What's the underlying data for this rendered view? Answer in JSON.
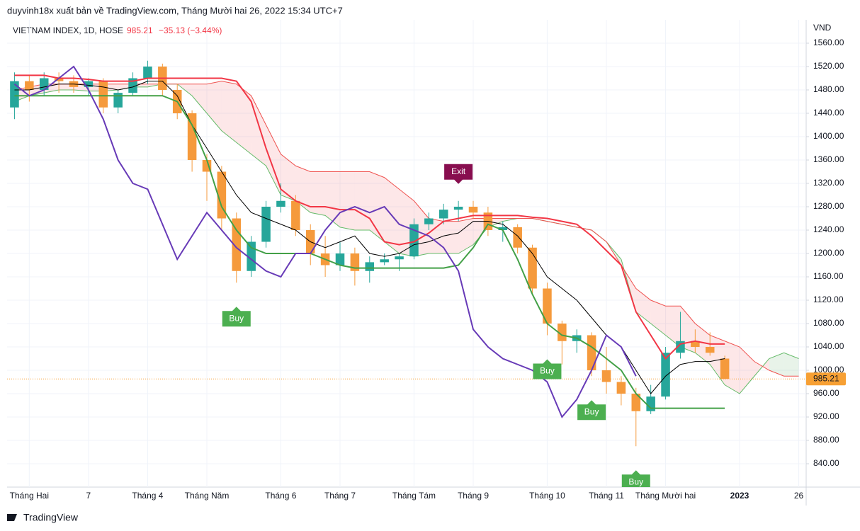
{
  "chart_data": {
    "type": "candlestick",
    "header": "duyvinh18x xuất bản về TradingView.com, Tháng Mười hai 26, 2022 15:34 UTC+7",
    "symbol": "VIETNAM INDEX, 1D, HOSE",
    "last_price": 985.21,
    "change": "−35.13 (−3.44%)",
    "currency": "VND",
    "brand": "TradingView",
    "up_color": "#26a69a",
    "down_color": "#f59a3c",
    "grid": true,
    "ylim": [
      800,
      1600
    ],
    "yticks": [
      {
        "value": 840,
        "label": "840.00"
      },
      {
        "value": 880,
        "label": "880.00"
      },
      {
        "value": 920,
        "label": "920.00"
      },
      {
        "value": 960,
        "label": "960.00"
      },
      {
        "value": 1000,
        "label": "1000.00"
      },
      {
        "value": 1040,
        "label": "1040.00"
      },
      {
        "value": 1080,
        "label": "1080.00"
      },
      {
        "value": 1120,
        "label": "1120.00"
      },
      {
        "value": 1160,
        "label": "1160.00"
      },
      {
        "value": 1200,
        "label": "1200.00"
      },
      {
        "value": 1240,
        "label": "1240.00"
      },
      {
        "value": 1280,
        "label": "1280.00"
      },
      {
        "value": 1320,
        "label": "1320.00"
      },
      {
        "value": 1360,
        "label": "1360.00"
      },
      {
        "value": 1400,
        "label": "1400.00"
      },
      {
        "value": 1440,
        "label": "1440.00"
      },
      {
        "value": 1480,
        "label": "1480.00"
      },
      {
        "value": 1520,
        "label": "1520.00"
      },
      {
        "value": 1560,
        "label": "1560.00"
      }
    ],
    "categories": [
      null,
      "Tháng Hai",
      null,
      null,
      null,
      "7",
      null,
      null,
      null,
      "Tháng 4",
      null,
      null,
      null,
      "Tháng Năm",
      null,
      null,
      null,
      null,
      "Tháng 6",
      null,
      null,
      null,
      "Tháng 7",
      null,
      null,
      null,
      null,
      "Tháng Tám",
      null,
      null,
      null,
      "Tháng 9",
      null,
      null,
      null,
      null,
      "Tháng 10",
      null,
      null,
      null,
      "Tháng 11",
      null,
      null,
      null,
      "Tháng Mười hai",
      null,
      null,
      null,
      null,
      "2023",
      null,
      null,
      null,
      "26"
    ],
    "open": [
      1450,
      1495,
      1480,
      1500,
      1495,
      1485,
      1495,
      1450,
      1475,
      1500,
      1520,
      1480,
      1440,
      1360,
      1340,
      1260,
      1170,
      1220,
      1280,
      1290,
      1240,
      1200,
      1180,
      1200,
      1170,
      1185,
      1190,
      1195,
      1250,
      1260,
      1275,
      1280,
      1270,
      1240,
      1245,
      1210,
      1140,
      1080,
      1050,
      1060,
      1000,
      980,
      960,
      930,
      955,
      1030,
      1050,
      1040,
      1020,
      null,
      null,
      null,
      null,
      null
    ],
    "high": [
      1510,
      1505,
      1510,
      1510,
      1505,
      1500,
      1500,
      1480,
      1510,
      1530,
      1525,
      1490,
      1445,
      1370,
      1350,
      1270,
      1230,
      1290,
      1320,
      1300,
      1250,
      1230,
      1220,
      1210,
      1195,
      1200,
      1200,
      1260,
      1270,
      1285,
      1290,
      1290,
      1280,
      1255,
      1250,
      1215,
      1150,
      1085,
      1070,
      1065,
      1040,
      990,
      970,
      975,
      1040,
      1100,
      1070,
      1065,
      1025,
      null,
      null,
      null,
      null,
      null
    ],
    "low": [
      1430,
      1460,
      1470,
      1475,
      1475,
      1470,
      1440,
      1440,
      1470,
      1490,
      1470,
      1430,
      1340,
      1290,
      1240,
      1150,
      1160,
      1210,
      1270,
      1230,
      1180,
      1160,
      1170,
      1145,
      1150,
      1180,
      1170,
      1190,
      1240,
      1250,
      1255,
      1260,
      1230,
      1220,
      1200,
      1130,
      1060,
      1010,
      1030,
      990,
      960,
      940,
      870,
      925,
      950,
      1020,
      1030,
      1025,
      985,
      null,
      null,
      null,
      null,
      null
    ],
    "close": [
      1495,
      1480,
      1500,
      1495,
      1485,
      1495,
      1450,
      1475,
      1500,
      1520,
      1480,
      1440,
      1360,
      1340,
      1260,
      1170,
      1220,
      1280,
      1290,
      1240,
      1200,
      1180,
      1200,
      1170,
      1185,
      1190,
      1195,
      1250,
      1260,
      1275,
      1280,
      1270,
      1240,
      1245,
      1210,
      1140,
      1080,
      1050,
      1060,
      1000,
      980,
      960,
      930,
      955,
      1030,
      1050,
      1040,
      1030,
      985.21,
      null,
      null,
      null,
      null,
      null
    ],
    "series": [
      {
        "color": "#000000",
        "width": 1,
        "values": [
          1480,
          1480,
          1485,
          1490,
          1490,
          1488,
          1485,
          1480,
          1485,
          1495,
          1495,
          1470,
          1420,
          1380,
          1340,
          1300,
          1270,
          1260,
          1250,
          1240,
          1220,
          1210,
          1220,
          1230,
          1200,
          1195,
          1200,
          1215,
          1220,
          1230,
          1235,
          1255,
          1255,
          1250,
          1230,
          1200,
          1160,
          1140,
          1120,
          1090,
          1060,
          1040,
          1000,
          960,
          990,
          1010,
          1015,
          1015,
          1020,
          null,
          null,
          null,
          null,
          null
        ]
      },
      {
        "color": "#f23645",
        "width": 2,
        "values": [
          1505,
          1505,
          1505,
          1500,
          1500,
          1498,
          1495,
          1495,
          1495,
          1500,
          1500,
          1500,
          1500,
          1500,
          1500,
          1495,
          1460,
          1380,
          1310,
          1290,
          1280,
          1280,
          1275,
          1275,
          1260,
          1220,
          1215,
          1220,
          1235,
          1255,
          1260,
          1265,
          1265,
          1265,
          1265,
          1262,
          1260,
          1255,
          1250,
          1230,
          1205,
          1180,
          1100,
          1060,
          1020,
          1045,
          1050,
          1045,
          1045,
          null,
          null,
          null,
          null,
          null
        ]
      },
      {
        "color": "#43a047",
        "width": 2,
        "values": [
          1470,
          1470,
          1470,
          1470,
          1470,
          1470,
          1470,
          1470,
          1470,
          1470,
          1470,
          1460,
          1420,
          1360,
          1280,
          1240,
          1210,
          1200,
          1200,
          1200,
          1200,
          1190,
          1180,
          1175,
          1175,
          1175,
          1175,
          1175,
          1175,
          1175,
          1180,
          1210,
          1250,
          1240,
          1190,
          1130,
          1080,
          1060,
          1055,
          1040,
          1020,
          1000,
          960,
          935,
          935,
          935,
          935,
          935,
          935,
          null,
          null,
          null,
          null,
          null
        ]
      },
      {
        "color": "#673ab7",
        "width": 2,
        "values": [
          1490,
          1470,
          1480,
          1500,
          1520,
          1480,
          1430,
          1360,
          1320,
          1310,
          1250,
          1190,
          1230,
          1270,
          1240,
          1210,
          1190,
          1170,
          1160,
          1200,
          1200,
          1240,
          1270,
          1280,
          1270,
          1280,
          1250,
          1240,
          1230,
          1210,
          1170,
          1070,
          1040,
          1020,
          1010,
          1000,
          980,
          920,
          950,
          1000,
          1060,
          1040,
          990,
          null,
          null,
          null,
          null,
          null,
          null,
          null,
          null,
          null,
          null,
          null
        ]
      }
    ],
    "cloud": {
      "up_color": "rgba(67,160,71,0.12)",
      "down_color": "rgba(242,54,69,0.12)",
      "lead_a": {
        "color": "#66bb6a",
        "values": [
          1460,
          1470,
          1475,
          1480,
          1480,
          1478,
          1478,
          1480,
          1485,
          1485,
          1490,
          1490,
          1470,
          1440,
          1410,
          1390,
          1370,
          1350,
          1300,
          1290,
          1270,
          1265,
          1245,
          1240,
          1240,
          1220,
          1200,
          1195,
          1200,
          1200,
          1200,
          1215,
          1245,
          1255,
          1260,
          1260,
          1255,
          1250,
          1245,
          1240,
          1220,
          1190,
          1100,
          1080,
          1060,
          1040,
          1030,
          1010,
          975,
          960,
          990,
          1020,
          1030,
          1020
        ]
      },
      "lead_b": {
        "color": "#ef5350",
        "values": [
          1480,
          1485,
          1490,
          1490,
          1490,
          1490,
          1490,
          1490,
          1490,
          1490,
          1490,
          1490,
          1490,
          1490,
          1495,
          1490,
          1470,
          1420,
          1370,
          1350,
          1340,
          1340,
          1340,
          1340,
          1340,
          1330,
          1310,
          1290,
          1260,
          1255,
          1255,
          1260,
          1260,
          1260,
          1260,
          1260,
          1255,
          1250,
          1245,
          1240,
          1220,
          1180,
          1140,
          1120,
          1110,
          1110,
          1080,
          1060,
          1050,
          1040,
          1015,
          1000,
          990,
          990
        ]
      }
    },
    "signals": [
      null,
      null,
      null,
      null,
      null,
      null,
      null,
      null,
      null,
      null,
      null,
      null,
      null,
      null,
      null,
      "Buy",
      null,
      null,
      null,
      null,
      null,
      null,
      null,
      null,
      null,
      null,
      null,
      null,
      null,
      null,
      "Exit",
      null,
      null,
      null,
      null,
      null,
      "Buy",
      null,
      null,
      "Buy",
      null,
      null,
      "Buy",
      null,
      null,
      null,
      null,
      null,
      null,
      null,
      null,
      null,
      null,
      null
    ]
  }
}
